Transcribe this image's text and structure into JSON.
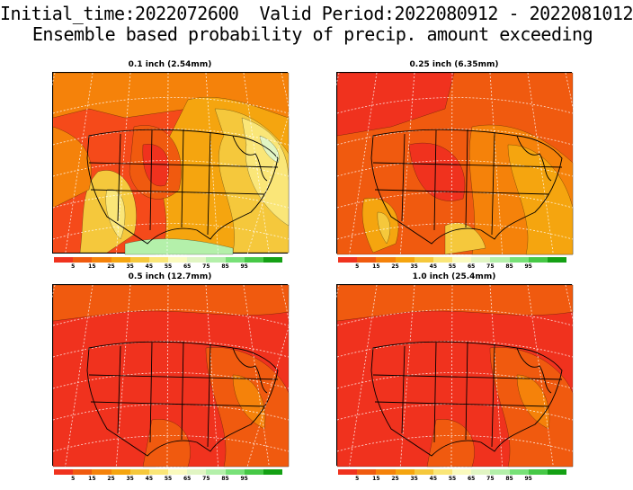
{
  "header": {
    "line1": "Initial_time:2022072600  Valid Period:2022080912 - 2022081012",
    "line2": "Ensemble based probability of precip. amount exceeding"
  },
  "panels": [
    {
      "title": "0.1 inch (2.54mm)",
      "variant": "light"
    },
    {
      "title": "0.25 inch (6.35mm)",
      "variant": "medium"
    },
    {
      "title": "0.5 inch (12.7mm)",
      "variant": "high"
    },
    {
      "title": "1.0 inch (25.4mm)",
      "variant": "high"
    }
  ],
  "legend": {
    "colors": [
      "#f0321e",
      "#f05a0f",
      "#f5820a",
      "#f5a50f",
      "#f5c83c",
      "#fae678",
      "#fafabe",
      "#e1f5c3",
      "#b4f0aa",
      "#78e178",
      "#46c846",
      "#14a014"
    ],
    "labels": [
      "5",
      "15",
      "25",
      "35",
      "45",
      "55",
      "65",
      "75",
      "85",
      "95"
    ]
  }
}
